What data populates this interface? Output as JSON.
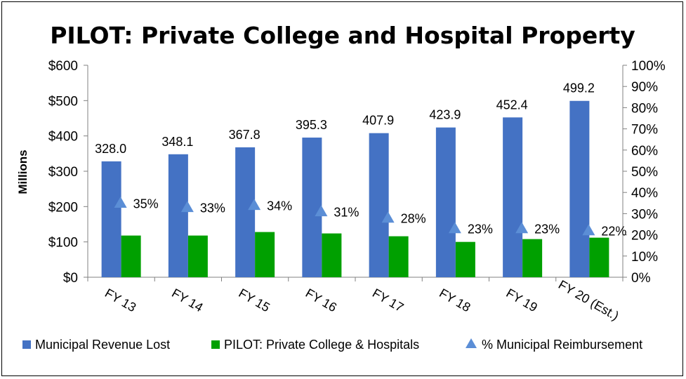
{
  "chart_data": {
    "type": "bar",
    "title": "PILOT: Private College and Hospital Property",
    "ylabel": "Millions",
    "ylim": [
      0,
      600
    ],
    "y2lim": [
      0,
      100
    ],
    "y_ticks": [
      "$0",
      "$100",
      "$200",
      "$300",
      "$400",
      "$500",
      "$600"
    ],
    "y2_ticks": [
      "0%",
      "10%",
      "20%",
      "30%",
      "40%",
      "50%",
      "60%",
      "70%",
      "80%",
      "90%",
      "100%"
    ],
    "categories": [
      "FY 13",
      "FY 14",
      "FY 15",
      "FY 16",
      "FY 17",
      "FY 18",
      "FY 19",
      "FY 20 (Est.)"
    ],
    "series": [
      {
        "name": "Municipal Revenue Lost",
        "type": "bar",
        "color": "#4472C4",
        "values": [
          328.0,
          348.1,
          367.8,
          395.3,
          407.9,
          423.9,
          452.4,
          499.2
        ],
        "labels": [
          "328.0",
          "348.1",
          "367.8",
          "395.3",
          "407.9",
          "423.9",
          "452.4",
          "499.2"
        ]
      },
      {
        "name": "PILOT: Private College & Hospitals",
        "type": "bar",
        "color": "#00A000",
        "values": [
          118,
          118,
          128,
          124,
          116,
          100,
          108,
          112
        ]
      },
      {
        "name": "% Municipal Reimbursement",
        "type": "marker",
        "axis": "secondary",
        "color": "#5B8ED6",
        "values": [
          35,
          33,
          34,
          31,
          28,
          23,
          23,
          22
        ],
        "labels": [
          "35%",
          "33%",
          "34%",
          "31%",
          "28%",
          "23%",
          "23%",
          "22%"
        ]
      }
    ],
    "legend": "bottom",
    "grid": false
  }
}
